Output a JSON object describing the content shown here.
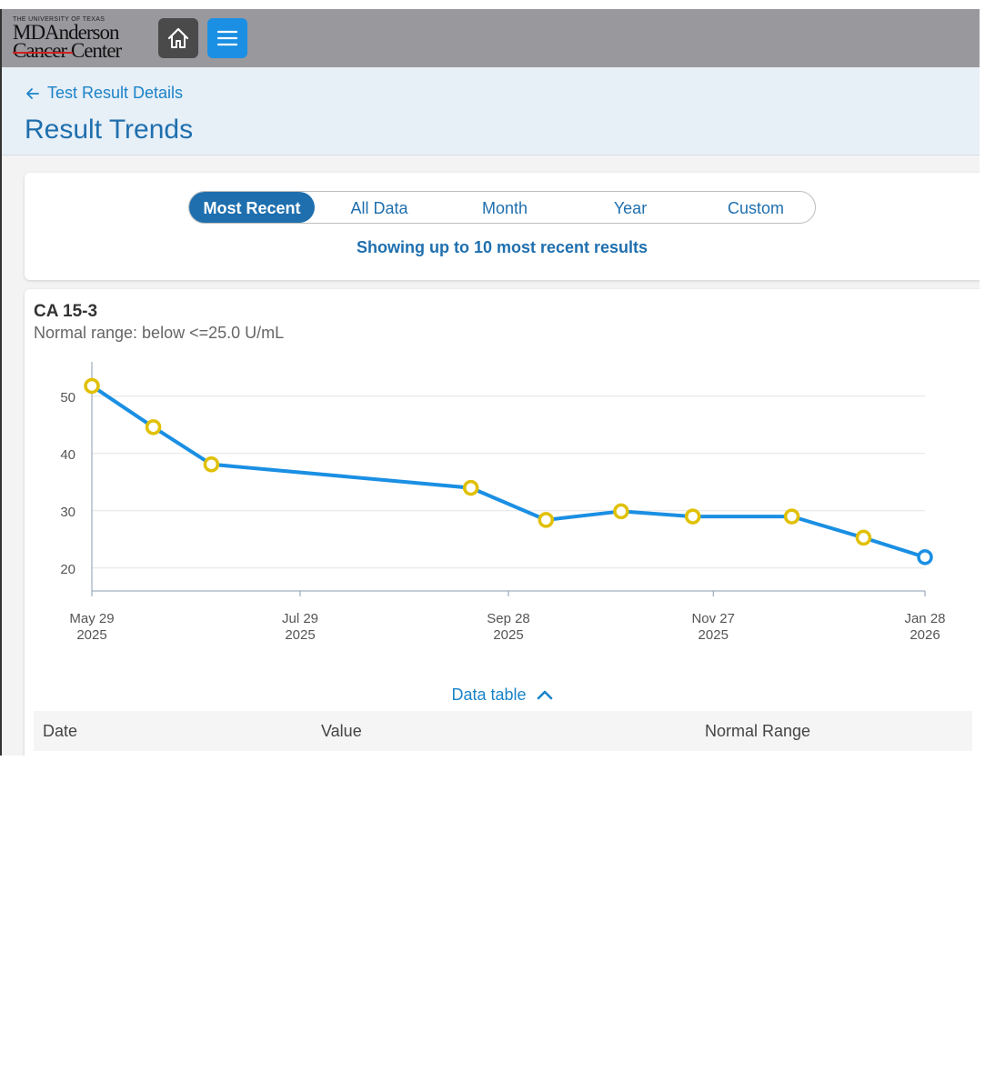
{
  "logo": {
    "small": "THE UNIVERSITY OF TEXAS",
    "line1": "MDAnderson",
    "line2": "Cancer Center"
  },
  "nav": {
    "home_icon": "home-icon",
    "menu_icon": "menu-icon"
  },
  "header": {
    "back_label": "Test Result Details",
    "title": "Result Trends"
  },
  "filters": {
    "options": [
      "Most Recent",
      "All Data",
      "Month",
      "Year",
      "Custom"
    ],
    "active": "Most Recent",
    "note": "Showing up to 10 most recent results"
  },
  "test": {
    "name": "CA 15-3",
    "normal_range": "Normal range: below <=25.0 U/mL"
  },
  "chart_data": {
    "type": "line",
    "title": "CA 15-3",
    "xlabel": "",
    "ylabel": "",
    "x_ticks": [
      {
        "label": "May 29",
        "year": "2025"
      },
      {
        "label": "Jul 29",
        "year": "2025"
      },
      {
        "label": "Sep 28",
        "year": "2025"
      },
      {
        "label": "Nov 27",
        "year": "2025"
      },
      {
        "label": "Jan 28",
        "year": "2026"
      }
    ],
    "y_ticks": [
      20,
      30,
      40,
      50
    ],
    "ylim": [
      16,
      56
    ],
    "x_day_range": [
      0,
      244
    ],
    "tick_days": [
      0,
      61,
      122,
      182,
      244
    ],
    "points": [
      {
        "day": 0,
        "value": 51.8
      },
      {
        "day": 18,
        "value": 44.6
      },
      {
        "day": 35,
        "value": 38.1
      },
      {
        "day": 111,
        "value": 34.0
      },
      {
        "day": 133,
        "value": 28.4
      },
      {
        "day": 155,
        "value": 29.9
      },
      {
        "day": 176,
        "value": 29.0
      },
      {
        "day": 205,
        "value": 29.0
      },
      {
        "day": 226,
        "value": 25.3
      },
      {
        "day": 244,
        "value": 21.9
      }
    ],
    "series_color": "#1a8fe3",
    "point_color": "#e0c000",
    "last_point_color": "#1a8fe3"
  },
  "data_table": {
    "toggle_label": "Data table",
    "columns": [
      "Date",
      "Value",
      "Normal Range"
    ]
  }
}
